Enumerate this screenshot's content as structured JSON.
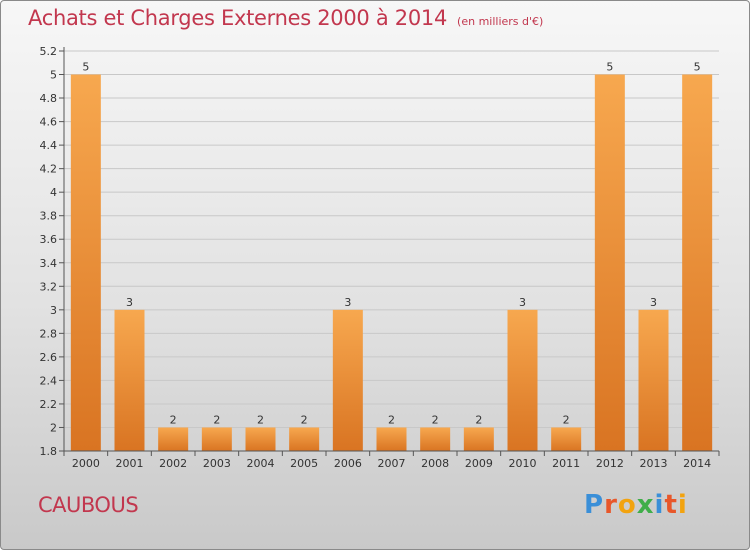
{
  "header": {
    "title": "Achats et Charges Externes 2000 à 2014",
    "subtitle": "(en milliers d'€)"
  },
  "footer": {
    "commune": "CAUBOUS",
    "brand": "Proxiti"
  },
  "colors": {
    "title": "#c2374e",
    "bar_light": "#f7a84f",
    "bar_dark": "#d97422",
    "brand_letters": [
      "#3a8fd8",
      "#e8572a",
      "#f2a30f",
      "#3fae49",
      "#3a8fd8",
      "#e8572a",
      "#f2a30f"
    ]
  },
  "chart_data": {
    "type": "bar",
    "title": "Achats et Charges Externes 2000 à 2014",
    "subtitle": "(en milliers d'€)",
    "categories": [
      "2000",
      "2001",
      "2002",
      "2003",
      "2004",
      "2005",
      "2006",
      "2007",
      "2008",
      "2009",
      "2010",
      "2011",
      "2012",
      "2013",
      "2014"
    ],
    "values": [
      5,
      3,
      2,
      2,
      2,
      2,
      3,
      2,
      2,
      2,
      3,
      2,
      5,
      3,
      5
    ],
    "ylim": [
      1.8,
      5.2
    ],
    "yticks": [
      "1.8",
      "2",
      "2.2",
      "2.4",
      "2.6",
      "2.8",
      "3",
      "3.2",
      "3.4",
      "3.6",
      "3.8",
      "4",
      "4.2",
      "4.4",
      "4.6",
      "4.8",
      "5",
      "5.2"
    ],
    "xlabel": "",
    "ylabel": "",
    "grid": true
  }
}
